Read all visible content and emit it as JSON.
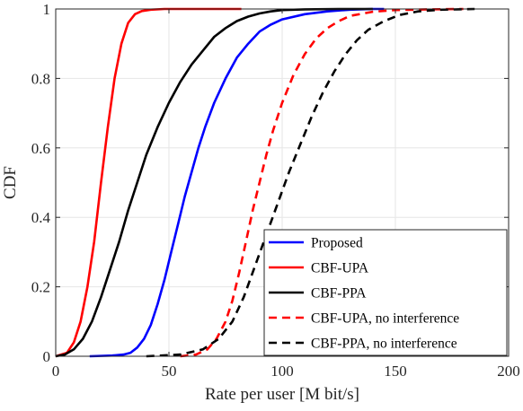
{
  "chart_data": {
    "type": "line",
    "xlabel": "Rate per user [M bit/s]",
    "ylabel": "CDF",
    "xlim": [
      0,
      200
    ],
    "ylim": [
      0,
      1
    ],
    "xticks": [
      "0",
      "50",
      "100",
      "150",
      "200"
    ],
    "yticks": [
      "0",
      "0.2",
      "0.4",
      "0.6",
      "0.8",
      "1"
    ],
    "grid": true,
    "legend_position": "bottom-right",
    "series": [
      {
        "name": "Proposed",
        "color": "#0000ff",
        "dash": "solid",
        "x": [
          15,
          25,
          30,
          33,
          36,
          39,
          42,
          45,
          48,
          51,
          54,
          57,
          60,
          63,
          66,
          70,
          75,
          80,
          85,
          90,
          95,
          100,
          110,
          120,
          130,
          140,
          145
        ],
        "y": [
          0,
          0.002,
          0.005,
          0.01,
          0.025,
          0.05,
          0.09,
          0.15,
          0.22,
          0.3,
          0.38,
          0.46,
          0.53,
          0.6,
          0.66,
          0.73,
          0.8,
          0.86,
          0.9,
          0.935,
          0.955,
          0.97,
          0.985,
          0.993,
          0.998,
          1,
          1
        ]
      },
      {
        "name": "CBF-UPA",
        "color": "#ff0000",
        "dash": "solid",
        "x": [
          0,
          5,
          8,
          11,
          14,
          17,
          20,
          23,
          26,
          29,
          32,
          35,
          38,
          42,
          48,
          55,
          65,
          82
        ],
        "y": [
          0,
          0.01,
          0.04,
          0.1,
          0.2,
          0.33,
          0.5,
          0.66,
          0.8,
          0.9,
          0.96,
          0.985,
          0.994,
          0.998,
          1,
          1,
          1,
          1
        ]
      },
      {
        "name": "CBF-PPA",
        "color": "#000000",
        "dash": "solid",
        "x": [
          0,
          4,
          8,
          12,
          16,
          20,
          24,
          28,
          32,
          36,
          40,
          45,
          50,
          55,
          60,
          65,
          70,
          75,
          80,
          85,
          90,
          95,
          100,
          110,
          125,
          140
        ],
        "y": [
          0,
          0.005,
          0.02,
          0.05,
          0.1,
          0.17,
          0.25,
          0.33,
          0.42,
          0.5,
          0.58,
          0.66,
          0.73,
          0.79,
          0.84,
          0.88,
          0.92,
          0.945,
          0.965,
          0.978,
          0.987,
          0.993,
          0.997,
          0.999,
          1,
          1
        ]
      },
      {
        "name": "CBF-UPA, no interference",
        "color": "#ff0000",
        "dash": "dashed",
        "x": [
          55,
          62,
          67,
          71,
          75,
          78,
          81,
          84,
          87,
          90,
          93,
          96,
          100,
          105,
          110,
          115,
          120,
          125,
          130,
          140,
          150,
          165,
          180
        ],
        "y": [
          0,
          0.005,
          0.02,
          0.05,
          0.1,
          0.16,
          0.24,
          0.33,
          0.42,
          0.5,
          0.58,
          0.65,
          0.73,
          0.81,
          0.87,
          0.915,
          0.945,
          0.965,
          0.98,
          0.992,
          0.997,
          0.999,
          1
        ]
      },
      {
        "name": "CBF-PPA, no interference",
        "color": "#000000",
        "dash": "dashed",
        "x": [
          40,
          55,
          65,
          72,
          78,
          83,
          88,
          93,
          98,
          103,
          108,
          113,
          118,
          123,
          128,
          133,
          138,
          145,
          152,
          160,
          170,
          185
        ],
        "y": [
          0,
          0.005,
          0.02,
          0.05,
          0.1,
          0.17,
          0.26,
          0.35,
          0.44,
          0.53,
          0.61,
          0.69,
          0.76,
          0.82,
          0.87,
          0.91,
          0.94,
          0.965,
          0.983,
          0.993,
          0.998,
          1
        ]
      }
    ]
  }
}
